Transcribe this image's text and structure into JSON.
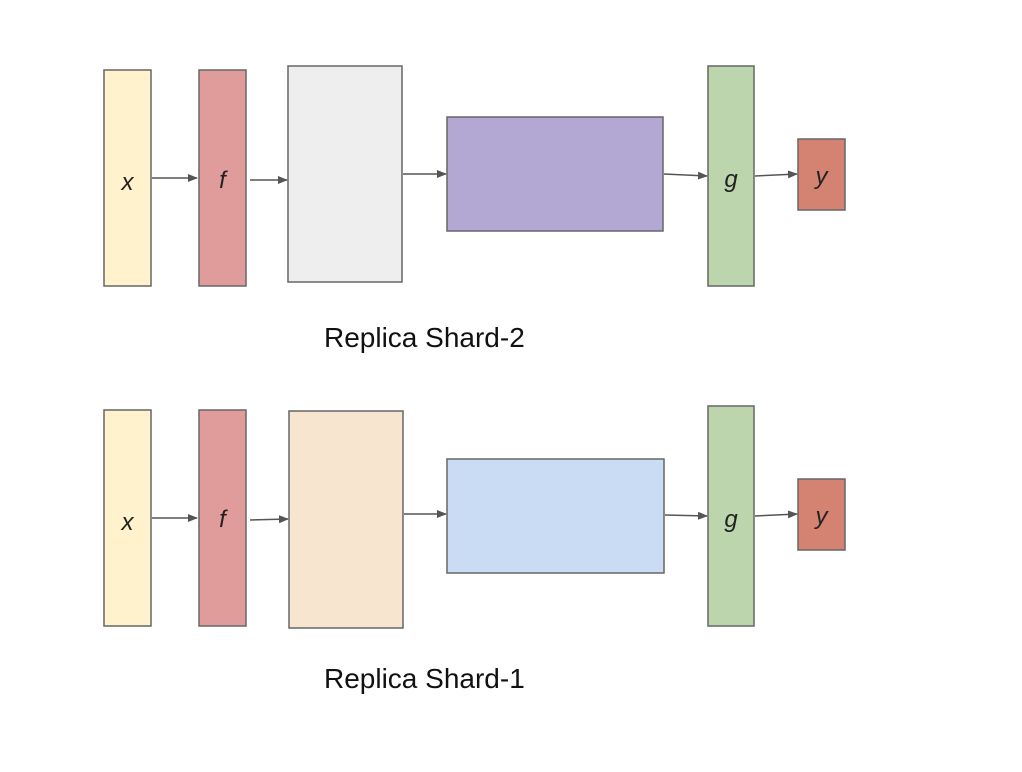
{
  "colors": {
    "input": "#fff2cc",
    "f_block": "#e09c9a",
    "g_block": "#bcd5ad",
    "output": "#d48272",
    "shard2_block_a": "#eeeeee",
    "shard2_block_b": "#b3a7d3",
    "shard1_block_a": "#f8e5d0",
    "shard1_block_b": "#cadcf4"
  },
  "shards": [
    {
      "caption": "Replica Shard-2",
      "nodes": {
        "x": "x",
        "f": "f",
        "g": "g",
        "y": "y"
      }
    },
    {
      "caption": "Replica Shard-1",
      "nodes": {
        "x": "x",
        "f": "f",
        "g": "g",
        "y": "y"
      }
    }
  ]
}
